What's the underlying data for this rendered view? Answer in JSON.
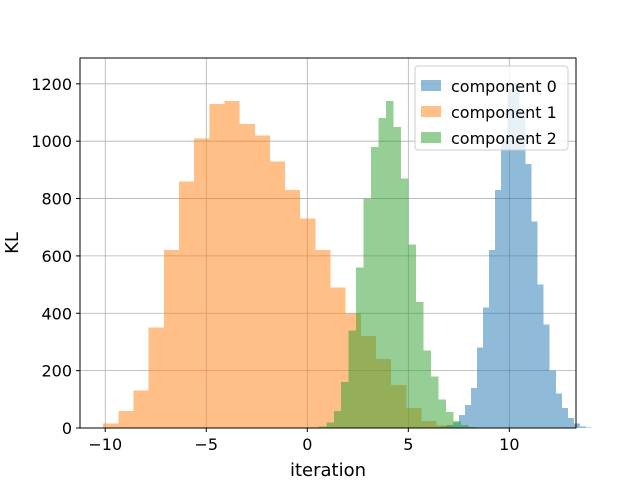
{
  "chart_data": {
    "type": "histogram",
    "title": "",
    "xlabel": "iteration",
    "ylabel": "KL",
    "xlim": [
      -11.25,
      13.3
    ],
    "ylim": [
      0,
      1290
    ],
    "xticks": [
      -10,
      -5,
      0,
      5,
      10
    ],
    "yticks": [
      0,
      200,
      400,
      600,
      800,
      1000,
      1200
    ],
    "grid": true,
    "legend_position": "top-right",
    "series": [
      {
        "name": "component 0",
        "color": "#1f77b4",
        "alpha": 0.5,
        "bin_start": 6.3,
        "bin_width": 0.3,
        "counts": [
          2,
          5,
          10,
          20,
          45,
          80,
          140,
          280,
          420,
          620,
          830,
          1000,
          1180,
          1200,
          1100,
          920,
          720,
          500,
          360,
          200,
          120,
          70,
          35,
          15,
          5,
          2
        ]
      },
      {
        "name": "component 1",
        "color": "#ff7f0e",
        "alpha": 0.5,
        "bin_start": -10.1,
        "bin_width": 0.75,
        "counts": [
          15,
          60,
          130,
          350,
          620,
          860,
          1010,
          1130,
          1140,
          1060,
          1020,
          930,
          830,
          730,
          620,
          490,
          400,
          320,
          240,
          150,
          70,
          25,
          8
        ]
      },
      {
        "name": "component 2",
        "color": "#2ca02c",
        "alpha": 0.5,
        "bin_start": 0.2,
        "bin_width": 0.37,
        "counts": [
          2,
          5,
          20,
          60,
          160,
          340,
          560,
          800,
          980,
          1080,
          1140,
          1050,
          870,
          640,
          440,
          270,
          180,
          100,
          55,
          25,
          10,
          4
        ]
      }
    ]
  }
}
